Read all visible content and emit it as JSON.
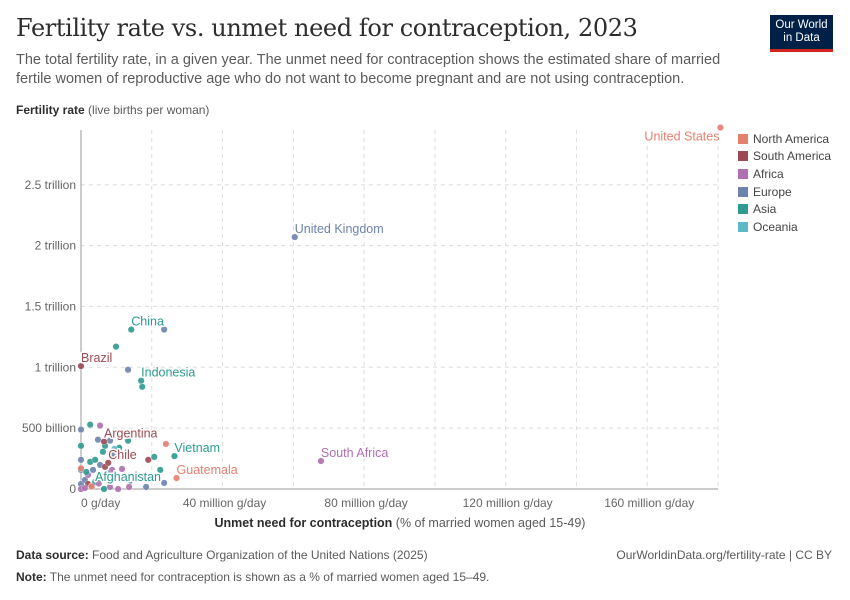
{
  "header": {
    "title": "Fertility rate vs. unmet need for contraception, 2023",
    "subtitle": "The total fertility rate, in a given year. The unmet need for contraception shows the estimated share of married fertile women of reproductive age who do not want to become pregnant and are not using contraception.",
    "logo_line1": "Our World",
    "logo_line2": "in Data"
  },
  "chart_data": {
    "type": "scatter",
    "title": "Fertility rate vs. unmet need for contraception, 2023",
    "ylabel_bold": "Fertility rate",
    "ylabel_rest": " (live births per woman)",
    "xlabel_bold": "Unmet need for contraception",
    "xlabel_rest": " (% of married women aged 15-49)",
    "xlim_million": [
      0,
      180
    ],
    "ylim_billion": [
      0,
      2950
    ],
    "x_ticks": [
      {
        "v": 0,
        "label": "0 g/day"
      },
      {
        "v": 40,
        "label": "40 million g/day"
      },
      {
        "v": 80,
        "label": "80 million g/day"
      },
      {
        "v": 120,
        "label": "120 million g/day"
      },
      {
        "v": 160,
        "label": "160 million g/day"
      }
    ],
    "y_ticks": [
      {
        "v": 0,
        "label": "0"
      },
      {
        "v": 500,
        "label": "500 billion"
      },
      {
        "v": 1000,
        "label": "1 trillion"
      },
      {
        "v": 1500,
        "label": "1.5 trillion"
      },
      {
        "v": 2000,
        "label": "2 trillion"
      },
      {
        "v": 2500,
        "label": "2.5 trillion"
      }
    ],
    "grid": true,
    "legend_position": "right",
    "regions": [
      {
        "name": "North America",
        "color": "#e5806f"
      },
      {
        "name": "South America",
        "color": "#9b4a55"
      },
      {
        "name": "Africa",
        "color": "#b06fb0"
      },
      {
        "name": "Europe",
        "color": "#6d82ad"
      },
      {
        "name": "Asia",
        "color": "#2e9a90"
      },
      {
        "name": "Oceania",
        "color": "#5bbac6"
      }
    ],
    "points": [
      {
        "label": "United States",
        "region": "North America",
        "x": 180.7,
        "y": 2970
      },
      {
        "label": "United Kingdom",
        "region": "Europe",
        "x": 60.4,
        "y": 2070
      },
      {
        "label": "China",
        "region": "Asia",
        "x": 14.2,
        "y": 1310
      },
      {
        "region": "Europe",
        "x": 23.5,
        "y": 1310
      },
      {
        "region": "Asia",
        "x": 9.9,
        "y": 1170
      },
      {
        "label": "Brazil",
        "region": "South America",
        "x": 0,
        "y": 1010
      },
      {
        "region": "Europe",
        "x": 13.3,
        "y": 980
      },
      {
        "label": "Indonesia",
        "region": "Asia",
        "x": 17,
        "y": 890
      },
      {
        "region": "Asia",
        "x": 17.3,
        "y": 840
      },
      {
        "label": "South Africa",
        "region": "Africa",
        "x": 67.8,
        "y": 230
      },
      {
        "label": "Guatemala",
        "region": "North America",
        "x": 27,
        "y": 90
      },
      {
        "label": "Vietnam",
        "region": "Asia",
        "x": 26.4,
        "y": 270
      },
      {
        "region": "North America",
        "x": 24,
        "y": 370
      },
      {
        "label": "Argentina",
        "region": "South America",
        "x": 6.5,
        "y": 390
      },
      {
        "label": "Chile",
        "region": "South America",
        "x": 7.7,
        "y": 215
      },
      {
        "label": "Afghanistan",
        "region": "Asia",
        "x": 4.8,
        "y": 91
      },
      {
        "region": "South America",
        "x": 19,
        "y": 240
      },
      {
        "region": "Europe",
        "x": 0,
        "y": 488
      },
      {
        "region": "Asia",
        "x": 0,
        "y": 355
      },
      {
        "region": "Europe",
        "x": 0,
        "y": 240
      },
      {
        "region": "Europe",
        "x": 0,
        "y": 157
      },
      {
        "region": "North America",
        "x": 0,
        "y": 170
      },
      {
        "region": "Europe",
        "x": 0,
        "y": 41
      },
      {
        "region": "Africa",
        "x": 0,
        "y": 0
      },
      {
        "region": "Asia",
        "x": 2.6,
        "y": 529
      },
      {
        "region": "Africa",
        "x": 5.4,
        "y": 521
      },
      {
        "region": "Europe",
        "x": 4.8,
        "y": 405
      },
      {
        "region": "Europe",
        "x": 8.2,
        "y": 397
      },
      {
        "region": "Asia",
        "x": 13.3,
        "y": 397
      },
      {
        "region": "Asia",
        "x": 10.8,
        "y": 339
      },
      {
        "region": "Asia",
        "x": 6.8,
        "y": 355
      },
      {
        "region": "Asia",
        "x": 6.2,
        "y": 306
      },
      {
        "region": "Europe",
        "x": 9.1,
        "y": 281
      },
      {
        "region": "Asia",
        "x": 2.6,
        "y": 223
      },
      {
        "region": "Asia",
        "x": 4,
        "y": 240
      },
      {
        "region": "Europe",
        "x": 5.4,
        "y": 198
      },
      {
        "region": "South America",
        "x": 6.8,
        "y": 182
      },
      {
        "region": "Africa",
        "x": 8.8,
        "y": 157
      },
      {
        "region": "Africa",
        "x": 11.6,
        "y": 165
      },
      {
        "region": "Europe",
        "x": 11.9,
        "y": 264
      },
      {
        "region": "Asia",
        "x": 20.7,
        "y": 264
      },
      {
        "region": "Asia",
        "x": 22.4,
        "y": 157
      },
      {
        "region": "Europe",
        "x": 23.5,
        "y": 50
      },
      {
        "region": "Europe",
        "x": 18.4,
        "y": 17
      },
      {
        "region": "Asia",
        "x": 6,
        "y": 107
      },
      {
        "region": "Europe",
        "x": 1.1,
        "y": 74
      },
      {
        "region": "South America",
        "x": 2,
        "y": 41
      },
      {
        "region": "Africa",
        "x": 3.1,
        "y": 25
      },
      {
        "region": "Asia",
        "x": 4,
        "y": 58
      },
      {
        "region": "Africa",
        "x": 8.2,
        "y": 17
      },
      {
        "region": "Africa",
        "x": 10.5,
        "y": 0
      },
      {
        "region": "Africa",
        "x": 13.6,
        "y": 17
      },
      {
        "region": "Asia",
        "x": 6.5,
        "y": 0
      },
      {
        "region": "Africa",
        "x": 1.1,
        "y": 8
      },
      {
        "region": "Africa",
        "x": 2,
        "y": 116
      },
      {
        "region": "Europe",
        "x": 3.4,
        "y": 157
      },
      {
        "region": "Oceania",
        "x": 9.5,
        "y": 330
      },
      {
        "region": "North America",
        "x": 3,
        "y": 20
      },
      {
        "region": "Asia",
        "x": 1.5,
        "y": 140
      },
      {
        "region": "Africa",
        "x": 5,
        "y": 45
      },
      {
        "region": "Europe",
        "x": 7.5,
        "y": 130
      },
      {
        "region": "Asia",
        "x": 14,
        "y": 70
      }
    ]
  },
  "footer": {
    "source_label": "Data source:",
    "source_text": " Food and Agriculture Organization of the United Nations (2025)",
    "url": "OurWorldinData.org/fertility-rate | CC BY",
    "note_label": "Note:",
    "note_text": " The unmet need for contraception is shown as a % of married women aged 15–49."
  }
}
